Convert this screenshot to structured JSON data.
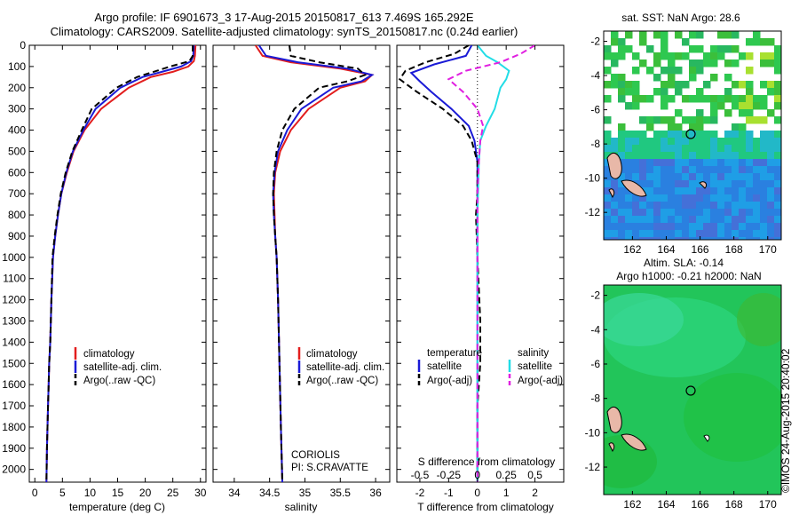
{
  "header": {
    "line1": "Argo profile: IF 6901673_3 17-Aug-2015 20150817_613 7.469S 165.292E",
    "line2": "Climatology: CARS2009. Satellite-adjusted climatology: synTS_20150817.nc (0.24d earlier)"
  },
  "colors": {
    "climatology": "#e21d1d",
    "satellite": "#1a1ad6",
    "argo": "#000000",
    "sal_satellite": "#22dde6",
    "sal_argo": "#e020e0"
  },
  "chart_data": [
    {
      "type": "line",
      "panel": "temperature",
      "xlabel": "temperature (deg C)",
      "ylabel": "",
      "xlim": [
        -1,
        31
      ],
      "ylim": [
        2060,
        0
      ],
      "xticks": [
        0,
        5,
        10,
        15,
        20,
        25,
        30
      ],
      "yticks": [
        0,
        100,
        200,
        300,
        400,
        500,
        600,
        700,
        800,
        900,
        1000,
        1100,
        1200,
        1300,
        1400,
        1500,
        1600,
        1700,
        1800,
        1900,
        2000
      ],
      "legend": [
        "climatology",
        "satellite-adj. clim.",
        "Argo(..raw -QC)"
      ],
      "series": [
        {
          "name": "climatology",
          "style": "solid",
          "color": "#e21d1d",
          "x": [
            29.1,
            29.0,
            28.8,
            27.8,
            25.0,
            21.0,
            17.0,
            12.0,
            9.0,
            7.0,
            5.8,
            4.8,
            4.2,
            3.7,
            3.3,
            3.0,
            2.8,
            2.6,
            2.5,
            2.4,
            2.3,
            2.2,
            2.1
          ],
          "y": [
            0,
            50,
            75,
            100,
            125,
            150,
            200,
            300,
            400,
            500,
            600,
            700,
            800,
            900,
            1000,
            1200,
            1400,
            1500,
            1600,
            1700,
            1800,
            1900,
            2060
          ]
        },
        {
          "name": "satellite-adj. clim.",
          "style": "solid",
          "color": "#1a1ad6",
          "x": [
            28.8,
            28.7,
            28.3,
            26.5,
            23.0,
            19.5,
            15.5,
            11.0,
            8.8,
            6.9,
            5.7,
            4.8,
            4.2,
            3.7,
            3.3,
            3.0,
            2.8,
            2.6,
            2.5,
            2.4,
            2.3,
            2.2,
            2.1
          ],
          "y": [
            0,
            50,
            75,
            100,
            125,
            150,
            200,
            300,
            400,
            500,
            600,
            700,
            800,
            900,
            1000,
            1200,
            1400,
            1500,
            1600,
            1700,
            1800,
            1900,
            2060
          ]
        },
        {
          "name": "Argo(..raw -QC)",
          "style": "dashed",
          "color": "#000000",
          "x": [
            28.6,
            28.6,
            28.0,
            24.5,
            21.5,
            18.5,
            14.8,
            10.3,
            8.5,
            6.8,
            5.6,
            4.7,
            4.1,
            3.6,
            3.2,
            3.0,
            2.8,
            2.6,
            2.5,
            2.4,
            2.3,
            2.2,
            2.1
          ],
          "y": [
            0,
            50,
            75,
            100,
            125,
            150,
            200,
            300,
            400,
            500,
            600,
            700,
            800,
            900,
            1000,
            1200,
            1400,
            1500,
            1600,
            1700,
            1800,
            1900,
            2060
          ]
        }
      ]
    },
    {
      "type": "line",
      "panel": "salinity",
      "xlabel": "salinity",
      "xlim": [
        33.7,
        36.2
      ],
      "ylim": [
        2060,
        0
      ],
      "xticks": [
        34,
        34.5,
        35,
        35.5,
        36
      ],
      "legend": [
        "climatology",
        "satellite-adj. clim.",
        "Argo(..raw -QC)"
      ],
      "annotations": [
        "CORIOLIS",
        "PI: S.CRAVATTE"
      ],
      "series": [
        {
          "name": "climatology",
          "style": "solid",
          "color": "#e21d1d",
          "x": [
            34.3,
            34.4,
            34.8,
            35.5,
            35.95,
            35.85,
            35.5,
            35.05,
            34.8,
            34.65,
            34.58,
            34.56,
            34.57,
            34.58,
            34.6,
            34.62,
            34.64,
            34.66,
            34.68
          ],
          "y": [
            0,
            50,
            80,
            110,
            140,
            170,
            200,
            300,
            400,
            500,
            600,
            700,
            800,
            900,
            1000,
            1200,
            1500,
            1800,
            2060
          ]
        },
        {
          "name": "satellite-adj. clim.",
          "style": "solid",
          "color": "#1a1ad6",
          "x": [
            34.35,
            34.45,
            34.9,
            35.6,
            35.95,
            35.8,
            35.4,
            34.95,
            34.75,
            34.62,
            34.57,
            34.55,
            34.56,
            34.58,
            34.6,
            34.62,
            34.64,
            34.66,
            34.68
          ],
          "y": [
            0,
            50,
            80,
            110,
            140,
            170,
            200,
            300,
            400,
            500,
            600,
            700,
            800,
            900,
            1000,
            1200,
            1500,
            1800,
            2060
          ]
        },
        {
          "name": "Argo(..raw -QC)",
          "style": "dashed",
          "color": "#000000",
          "x": [
            34.78,
            34.8,
            35.2,
            35.75,
            35.85,
            35.6,
            35.2,
            34.85,
            34.68,
            34.6,
            34.56,
            34.55,
            34.56,
            34.58,
            34.6,
            34.62,
            34.64,
            34.66,
            34.68
          ],
          "y": [
            0,
            50,
            80,
            110,
            140,
            170,
            200,
            300,
            400,
            500,
            600,
            700,
            800,
            900,
            1000,
            1200,
            1500,
            1800,
            2060
          ]
        }
      ]
    },
    {
      "type": "line",
      "panel": "difference",
      "xlabel": "T difference from climatology",
      "toplabel": "S difference from climatology",
      "xlim": [
        -2.8,
        3.0
      ],
      "ylim": [
        2060,
        0
      ],
      "xticks": [
        -2,
        -1,
        0,
        1,
        2
      ],
      "top_xticks": [
        "-0.5",
        "-0.25",
        "0",
        "0.25",
        "0.5"
      ],
      "legend_groups": [
        {
          "heading": "temperature",
          "entries": [
            "satellite",
            "Argo(-adj)"
          ]
        },
        {
          "heading": "salinity",
          "entries": [
            "satellite",
            "Argo(-adj)"
          ]
        }
      ],
      "series": [
        {
          "name": "temperature satellite",
          "style": "solid",
          "color": "#1a1ad6",
          "x": [
            -0.2,
            -0.4,
            -1.5,
            -2.3,
            -2.0,
            -1.6,
            -0.9,
            -0.3,
            -0.1,
            0.0,
            0.0,
            0.0
          ],
          "y": [
            0,
            50,
            90,
            130,
            170,
            220,
            300,
            380,
            450,
            550,
            800,
            2060
          ]
        },
        {
          "name": "temperature Argo(-adj)",
          "style": "dashed",
          "color": "#000000",
          "x": [
            -0.3,
            -0.8,
            -1.8,
            -2.5,
            -2.7,
            -2.1,
            -1.2,
            -0.5,
            -0.2,
            0.0,
            0.0,
            -0.05,
            0.0,
            0.1,
            0.1,
            0.0,
            0.0
          ],
          "y": [
            0,
            40,
            80,
            120,
            160,
            220,
            300,
            380,
            450,
            550,
            700,
            800,
            1000,
            1300,
            1500,
            1700,
            2060
          ]
        },
        {
          "name": "salinity satellite",
          "style": "solid",
          "color": "#22dde6",
          "x": [
            0.0,
            0.3,
            0.7,
            1.1,
            1.0,
            0.8,
            0.6,
            0.3,
            0.1,
            0.05,
            0.0,
            0.0
          ],
          "y": [
            0,
            50,
            80,
            120,
            160,
            200,
            300,
            380,
            450,
            550,
            800,
            2060
          ]
        },
        {
          "name": "salinity Argo(-adj)",
          "style": "dashed",
          "color": "#e020e0",
          "x": [
            2.0,
            1.5,
            0.8,
            -0.4,
            -1.0,
            -0.5,
            0.0,
            0.2,
            0.1,
            0.05,
            0.0,
            0.0,
            0.0
          ],
          "y": [
            0,
            40,
            80,
            120,
            160,
            220,
            300,
            380,
            450,
            550,
            700,
            800,
            2060
          ]
        }
      ]
    }
  ],
  "maps": {
    "sst": {
      "title": "sat. SST: NaN Argo: 28.6",
      "xticks": [
        "162",
        "164",
        "166",
        "168",
        "170"
      ],
      "yticks": [
        "-2",
        "-4",
        "-6",
        "-8",
        "-10",
        "-12"
      ]
    },
    "sla": {
      "title_line1": "Altim. SLA: -0.14",
      "title_line2": "Argo h1000: -0.21 h2000: NaN",
      "xticks": [
        "162",
        "164",
        "166",
        "168",
        "170"
      ],
      "yticks": [
        "-2",
        "-4",
        "-6",
        "-8",
        "-10",
        "-12"
      ]
    }
  },
  "footer": {
    "stamp": "©IMOS 24-Aug-2015 20:40:02"
  }
}
